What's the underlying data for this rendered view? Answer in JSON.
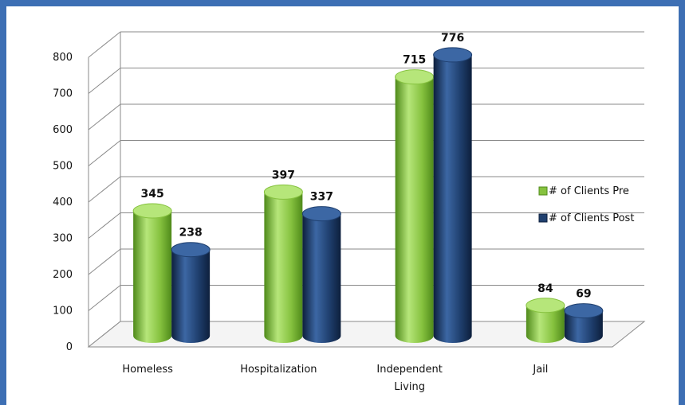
{
  "chart_data": {
    "type": "bar",
    "style": "3d-cylinder",
    "categories": [
      [
        "Homeless"
      ],
      [
        "Hospitalization"
      ],
      [
        "Independent",
        "Living"
      ],
      [
        "Jail"
      ]
    ],
    "series": [
      {
        "name": "# of Clients Pre",
        "values": [
          345,
          397,
          715,
          84
        ],
        "color": "#86c23f",
        "highlight": "#b6e67a",
        "shade": "#4f8a1a"
      },
      {
        "name": "# of Clients Post",
        "values": [
          238,
          337,
          776,
          69
        ],
        "color": "#1f3f6e",
        "highlight": "#3c67a4",
        "shade": "#0d1f3c"
      }
    ],
    "yticks": [
      0,
      100,
      200,
      300,
      400,
      500,
      600,
      700,
      800
    ],
    "ylim": [
      0,
      800
    ],
    "grid": true,
    "legend": "right",
    "frame_color": "#3d6fb4"
  }
}
